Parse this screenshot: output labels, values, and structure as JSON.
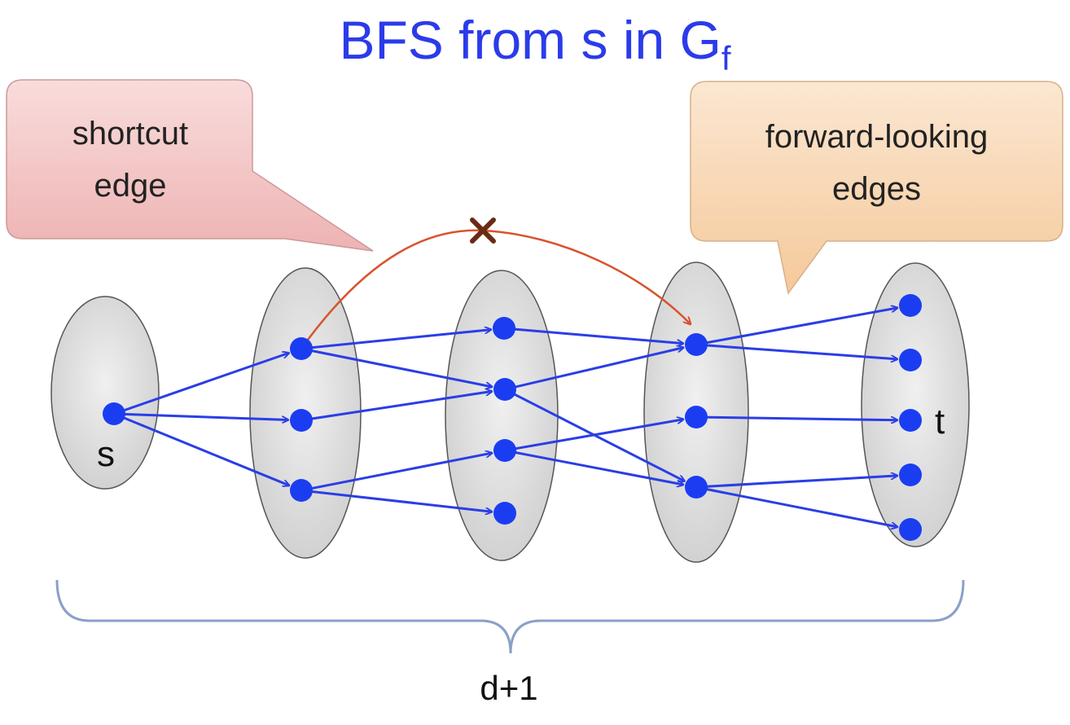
{
  "title": {
    "main": "BFS from s in G",
    "subscript": "f"
  },
  "callouts": {
    "shortcut": {
      "line1": "shortcut",
      "line2": "edge",
      "fill": "#f4cccc"
    },
    "forward": {
      "line1": "forward-looking",
      "line2": "edges",
      "fill": "#f9d9b5"
    }
  },
  "labels": {
    "source": "s",
    "sink": "t",
    "span": "d+1"
  },
  "colors": {
    "title": "#2b3bea",
    "edge": "#2a3ee6",
    "node": "#1b3df2",
    "shortcut_edge": "#d9532e",
    "cross": "#6b2a12",
    "layer_fill": "#d9d9d9",
    "brace": "#8aa0c8"
  },
  "layers": [
    {
      "name": "layer-0",
      "nodes": [
        "s"
      ]
    },
    {
      "name": "layer-1",
      "nodes": [
        "a1",
        "a2",
        "a3"
      ]
    },
    {
      "name": "layer-2",
      "nodes": [
        "b1",
        "b2",
        "b3",
        "b4"
      ]
    },
    {
      "name": "layer-3",
      "nodes": [
        "c1",
        "c2",
        "c3"
      ]
    },
    {
      "name": "layer-4",
      "nodes": [
        "d1",
        "d2",
        "t",
        "d4",
        "d5"
      ]
    }
  ],
  "edges": [
    [
      "s",
      "a1"
    ],
    [
      "s",
      "a2"
    ],
    [
      "s",
      "a3"
    ],
    [
      "a1",
      "b1"
    ],
    [
      "a1",
      "b2"
    ],
    [
      "a2",
      "b2"
    ],
    [
      "a3",
      "b3"
    ],
    [
      "a3",
      "b4"
    ],
    [
      "b1",
      "c1"
    ],
    [
      "b2",
      "c1"
    ],
    [
      "b2",
      "c3"
    ],
    [
      "b3",
      "c2"
    ],
    [
      "b3",
      "c3"
    ],
    [
      "c1",
      "d1"
    ],
    [
      "c1",
      "d2"
    ],
    [
      "c2",
      "t"
    ],
    [
      "c3",
      "d4"
    ],
    [
      "c3",
      "d5"
    ]
  ],
  "shortcut_edge": {
    "from": "a1",
    "to": "c1",
    "crossed": true
  }
}
